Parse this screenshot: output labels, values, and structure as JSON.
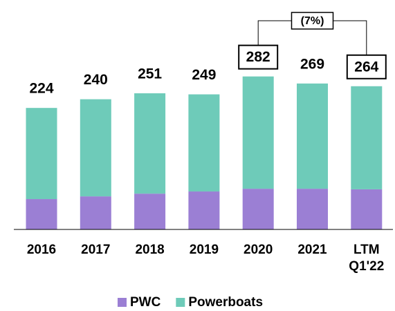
{
  "chart_data": {
    "type": "stacked_bar",
    "categories": [
      "2016",
      "2017",
      "2018",
      "2019",
      "2020",
      "2021",
      "LTM Q1'22"
    ],
    "series": [
      {
        "name": "PWC",
        "color": "#9b7fd4",
        "values": [
          56,
          61,
          66,
          70,
          75,
          75,
          74
        ]
      },
      {
        "name": "Powerboats",
        "color": "#6ecbb9",
        "values": [
          168,
          179,
          185,
          179,
          207,
          194,
          190
        ]
      }
    ],
    "totals": [
      224,
      240,
      251,
      249,
      282,
      269,
      264
    ],
    "annotation": {
      "text": "(7%)",
      "from": "2020",
      "to": "LTM Q1'22"
    },
    "legend": "bottom"
  }
}
